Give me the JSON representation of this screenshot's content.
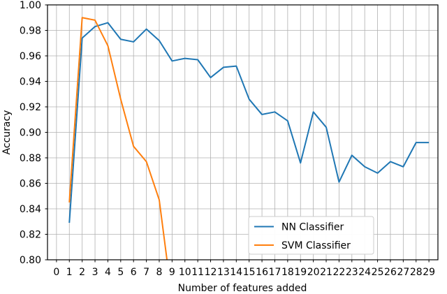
{
  "figure": {
    "background": "#ffffff"
  },
  "chart_data": {
    "type": "line",
    "title": "",
    "xlabel": "Number of features added",
    "ylabel": "Accuracy",
    "xlim": [
      -0.7,
      29.7
    ],
    "ylim": [
      0.8,
      1.0
    ],
    "grid": true,
    "grid_color": "#b0b0b0",
    "axis_color": "#000000",
    "x_ticks": [
      0,
      1,
      2,
      3,
      4,
      5,
      6,
      7,
      8,
      9,
      10,
      11,
      12,
      13,
      14,
      15,
      16,
      17,
      18,
      19,
      20,
      21,
      22,
      23,
      24,
      25,
      26,
      27,
      28,
      29
    ],
    "x_tick_labels": [
      "0",
      "1",
      "2",
      "3",
      "4",
      "5",
      "6",
      "7",
      "8",
      "9",
      "10",
      "11",
      "12",
      "13",
      "14",
      "15",
      "16",
      "17",
      "18",
      "19",
      "20",
      "21",
      "22",
      "23",
      "24",
      "25",
      "26",
      "27",
      "28",
      "29"
    ],
    "y_ticks": [
      0.8,
      0.82,
      0.84,
      0.86,
      0.88,
      0.9,
      0.92,
      0.94,
      0.96,
      0.98,
      1.0
    ],
    "y_tick_labels": [
      "0.80",
      "0.82",
      "0.84",
      "0.86",
      "0.88",
      "0.90",
      "0.92",
      "0.94",
      "0.96",
      "0.98",
      "1.00"
    ],
    "legend": {
      "visible": true,
      "location": "lower center-right",
      "frame_color": "#cccccc",
      "face_color": "#ffffff"
    },
    "series": [
      {
        "name": "NN Classifier",
        "color": "#1f77b4",
        "x": [
          1,
          2,
          3,
          4,
          5,
          6,
          7,
          8,
          9,
          10,
          11,
          12,
          13,
          14,
          15,
          16,
          17,
          18,
          19,
          20,
          21,
          22,
          23,
          24,
          25,
          26,
          27,
          28,
          29
        ],
        "y": [
          0.829,
          0.974,
          0.983,
          0.986,
          0.973,
          0.971,
          0.981,
          0.972,
          0.956,
          0.958,
          0.957,
          0.943,
          0.951,
          0.952,
          0.926,
          0.914,
          0.916,
          0.909,
          0.876,
          0.916,
          0.904,
          0.861,
          0.882,
          0.873,
          0.868,
          0.877,
          0.873,
          0.892,
          0.892
        ]
      },
      {
        "name": "SVM Classifier",
        "color": "#ff7f0e",
        "x": [
          1,
          2,
          3,
          4,
          5,
          6,
          7,
          8,
          9
        ],
        "y": [
          0.845,
          0.99,
          0.988,
          0.968,
          0.926,
          0.889,
          0.877,
          0.847,
          0.769
        ],
        "note": "final segment extends below ylim and is clipped at y=0.80 near x=8.6"
      }
    ]
  }
}
